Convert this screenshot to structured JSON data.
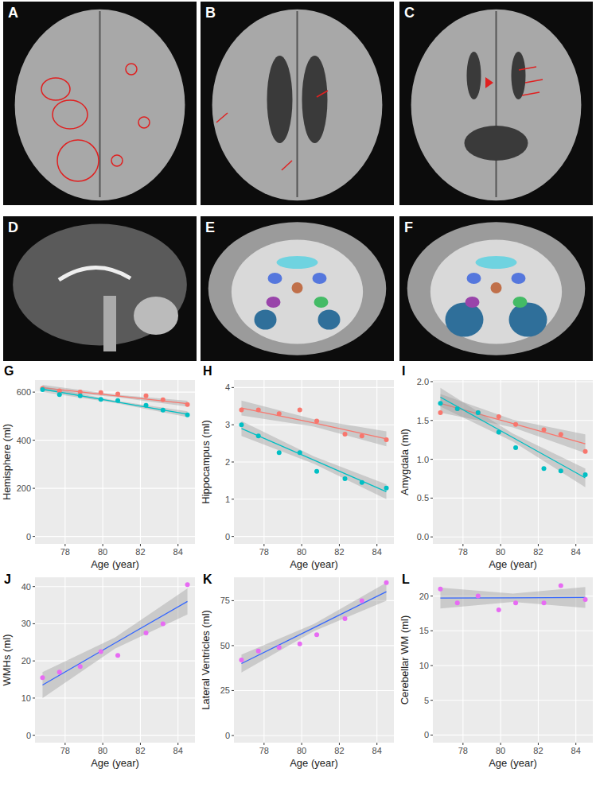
{
  "images": [
    {
      "label": "A"
    },
    {
      "label": "B"
    },
    {
      "label": "C"
    },
    {
      "label": "D"
    },
    {
      "label": "E"
    },
    {
      "label": "F"
    }
  ],
  "chart_data": [
    {
      "type": "scatter",
      "title": "G",
      "x_label": "Age (year)",
      "y_label": "Hemisphere (ml)",
      "grid": true,
      "x": [
        76.8,
        77.7,
        78.8,
        79.9,
        80.8,
        82.3,
        83.2,
        84.5
      ],
      "xlim": [
        76.4,
        84.9
      ],
      "xticks": [
        78,
        80,
        82,
        84
      ],
      "ylim": [
        -31,
        650
      ],
      "yticks": [
        0,
        200,
        400,
        600
      ],
      "series": [
        {
          "color": "#F8766D",
          "values": [
            615,
            605,
            600,
            598,
            592,
            585,
            568,
            548
          ]
        },
        {
          "color": "#00BFC4",
          "values": [
            610,
            590,
            585,
            570,
            565,
            545,
            525,
            505
          ]
        },
        {
          "type": "line",
          "color": "#F8766D",
          "x": [
            76.8,
            80.65,
            84.5
          ],
          "values": [
            618,
            585,
            552
          ],
          "lower": [
            606,
            580,
            540
          ],
          "upper": [
            630,
            590,
            564
          ]
        },
        {
          "type": "line",
          "color": "#00BFC4",
          "x": [
            76.8,
            80.65,
            84.5
          ],
          "values": [
            612,
            560,
            508
          ],
          "lower": [
            600,
            555,
            496
          ],
          "upper": [
            624,
            565,
            520
          ]
        }
      ]
    },
    {
      "type": "scatter",
      "title": "H",
      "x_label": "Age (year)",
      "y_label": "Hippocampus (ml)",
      "grid": true,
      "x": [
        76.8,
        77.7,
        78.8,
        79.9,
        80.8,
        82.3,
        83.2,
        84.5
      ],
      "xlim": [
        76.4,
        84.9
      ],
      "xticks": [
        78,
        80,
        82,
        84
      ],
      "ylim": [
        -0.2,
        4.2
      ],
      "yticks": [
        0,
        1,
        2,
        3,
        4
      ],
      "series": [
        {
          "color": "#F8766D",
          "values": [
            3.4,
            3.4,
            3.3,
            3.4,
            3.1,
            2.75,
            2.7,
            2.6
          ]
        },
        {
          "color": "#00BFC4",
          "values": [
            3.0,
            2.7,
            2.25,
            2.25,
            1.75,
            1.55,
            1.45,
            1.3
          ]
        },
        {
          "type": "line",
          "color": "#F8766D",
          "x": [
            76.8,
            80.65,
            84.5
          ],
          "values": [
            3.45,
            3.05,
            2.62
          ],
          "lower": [
            3.25,
            2.95,
            2.42
          ],
          "upper": [
            3.65,
            3.15,
            2.82
          ]
        },
        {
          "type": "line",
          "color": "#00BFC4",
          "x": [
            76.8,
            80.65,
            84.5
          ],
          "values": [
            2.9,
            2.05,
            1.2
          ],
          "lower": [
            2.7,
            1.95,
            1.0
          ],
          "upper": [
            3.1,
            2.15,
            1.4
          ]
        }
      ]
    },
    {
      "type": "scatter",
      "title": "I",
      "x_label": "Age (year)",
      "y_label": "Amygdala (ml)",
      "grid": true,
      "x": [
        76.8,
        77.7,
        78.8,
        79.9,
        80.8,
        82.3,
        83.2,
        84.5
      ],
      "xlim": [
        76.4,
        84.9
      ],
      "xticks": [
        78,
        80,
        82,
        84
      ],
      "ylim": [
        -0.09,
        2.02
      ],
      "yticks": [
        {
          "value": 0,
          "label": "0.0"
        },
        {
          "value": 0.5,
          "label": "0.5"
        },
        {
          "value": 1,
          "label": "1.0"
        },
        {
          "value": 1.5,
          "label": "1.5"
        },
        {
          "value": 2,
          "label": "2.0"
        }
      ],
      "series": [
        {
          "color": "#F8766D",
          "values": [
            1.6,
            1.65,
            1.6,
            1.55,
            1.45,
            1.38,
            1.32,
            1.1
          ]
        },
        {
          "color": "#00BFC4",
          "values": [
            1.72,
            1.65,
            1.6,
            1.35,
            1.15,
            0.88,
            0.85,
            0.8
          ]
        },
        {
          "type": "line",
          "color": "#F8766D",
          "x": [
            76.8,
            80.65,
            84.5
          ],
          "values": [
            1.72,
            1.46,
            1.2
          ],
          "lower": [
            1.6,
            1.41,
            1.08
          ],
          "upper": [
            1.84,
            1.51,
            1.32
          ]
        },
        {
          "type": "line",
          "color": "#00BFC4",
          "x": [
            76.8,
            80.65,
            84.5
          ],
          "values": [
            1.8,
            1.28,
            0.76
          ],
          "lower": [
            1.68,
            1.23,
            0.64
          ],
          "upper": [
            1.92,
            1.33,
            0.88
          ]
        }
      ]
    },
    {
      "type": "scatter",
      "title": "J",
      "x_label": "Age (year)",
      "y_label": "WMHs (ml)",
      "grid": true,
      "x": [
        76.8,
        77.7,
        78.8,
        79.9,
        80.8,
        82.3,
        83.2,
        84.5
      ],
      "xlim": [
        76.4,
        84.9
      ],
      "xticks": [
        78,
        80,
        82,
        84
      ],
      "ylim": [
        -2,
        42.5
      ],
      "yticks": [
        0,
        10,
        20,
        30,
        40
      ],
      "series": [
        {
          "color": "#E76BF3",
          "values": [
            15.5,
            17,
            18.5,
            22.5,
            21.5,
            27.5,
            30,
            40.5
          ]
        },
        {
          "type": "line",
          "color": "#3366FF",
          "x": [
            76.8,
            80.65,
            84.5
          ],
          "values": [
            13.5,
            24.8,
            36
          ],
          "lower": [
            10,
            23.3,
            32.5
          ],
          "upper": [
            17,
            26.3,
            39.5
          ]
        }
      ]
    },
    {
      "type": "scatter",
      "title": "K",
      "x_label": "Age (year)",
      "y_label": "Lateral Ventricles (ml)",
      "grid": true,
      "x": [
        76.8,
        77.7,
        78.8,
        79.9,
        80.8,
        82.3,
        83.2,
        84.5
      ],
      "xlim": [
        76.4,
        84.9
      ],
      "xticks": [
        78,
        80,
        82,
        84
      ],
      "ylim": [
        -4,
        88
      ],
      "yticks": [
        0,
        25,
        50,
        75
      ],
      "series": [
        {
          "color": "#E76BF3",
          "values": [
            42,
            47,
            49,
            51,
            56,
            65,
            75,
            85
          ]
        },
        {
          "type": "line",
          "color": "#3366FF",
          "x": [
            76.8,
            80.65,
            84.5
          ],
          "values": [
            40,
            60,
            80
          ],
          "lower": [
            35,
            58,
            75
          ],
          "upper": [
            45,
            62,
            85
          ]
        }
      ]
    },
    {
      "type": "scatter",
      "title": "L",
      "x_label": "Age (year)",
      "y_label": "Cerebellar WM (ml)",
      "grid": true,
      "x": [
        76.8,
        77.7,
        78.8,
        79.9,
        80.8,
        82.3,
        83.2,
        84.5
      ],
      "xlim": [
        76.4,
        84.9
      ],
      "xticks": [
        78,
        80,
        82,
        84
      ],
      "ylim": [
        -1.1,
        22.7
      ],
      "yticks": [
        0,
        5,
        10,
        15,
        20
      ],
      "series": [
        {
          "color": "#E76BF3",
          "values": [
            21,
            19,
            20,
            18,
            19,
            19,
            21.5,
            19.5
          ]
        },
        {
          "type": "line",
          "color": "#3366FF",
          "x": [
            76.8,
            80.65,
            84.5
          ],
          "values": [
            19.7,
            19.75,
            19.8
          ],
          "lower": [
            18.2,
            19.15,
            18.3
          ],
          "upper": [
            21.2,
            20.35,
            21.3
          ]
        }
      ]
    }
  ]
}
